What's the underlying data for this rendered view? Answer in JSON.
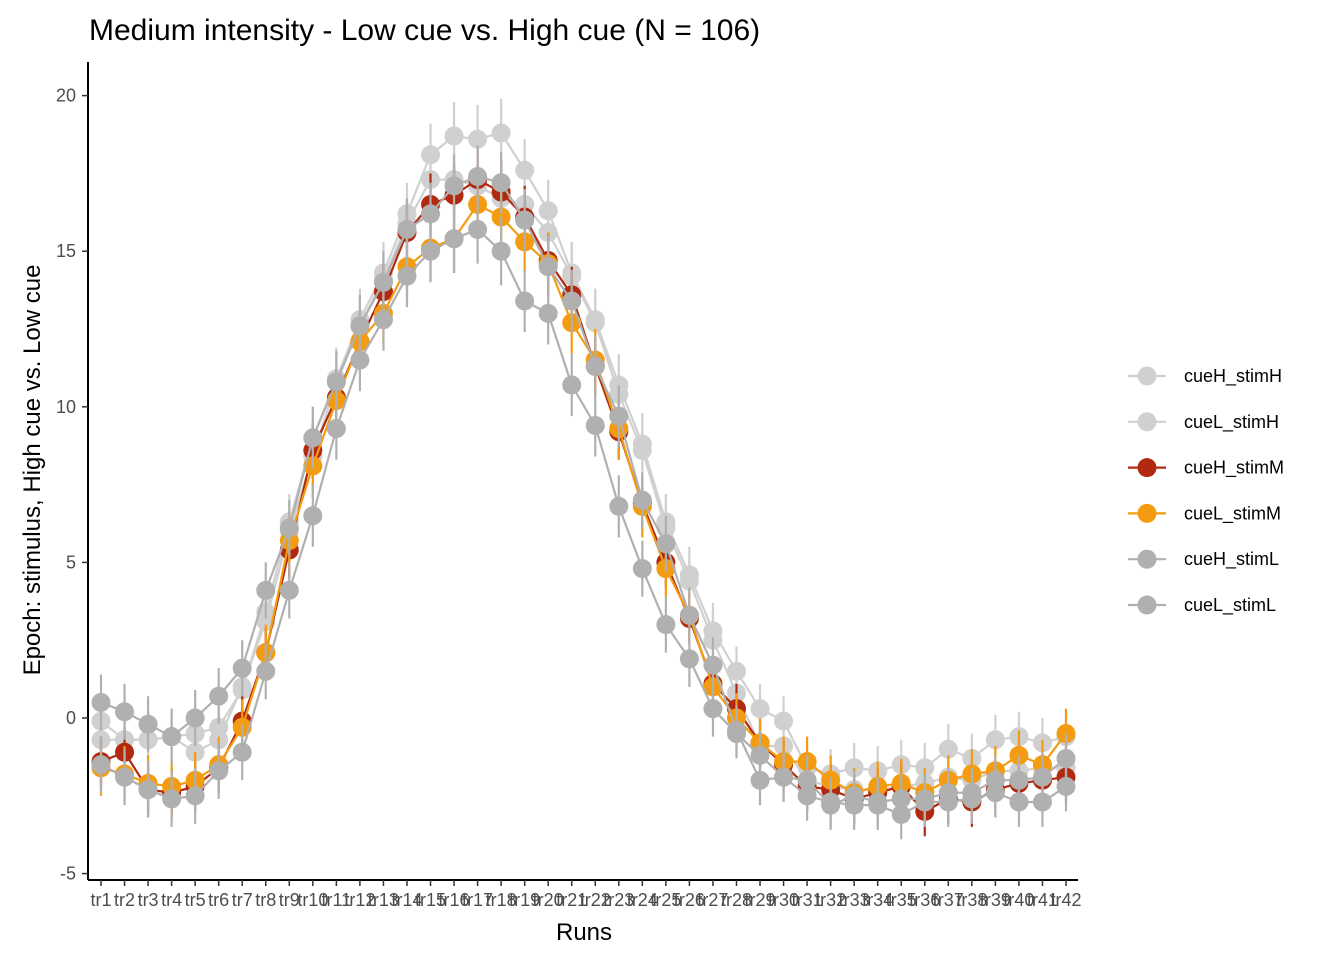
{
  "chart_data": {
    "type": "line",
    "title": "Medium intensity - Low cue vs. High cue (N = 106)",
    "xlabel": "Runs",
    "ylabel": "Epoch: stimulus, High cue vs. Low cue",
    "ylim": [
      -5,
      20
    ],
    "yticks": [
      -5,
      0,
      5,
      10,
      15,
      20
    ],
    "grid": false,
    "legend_position": "right",
    "categories": [
      "tr1",
      "tr2",
      "tr3",
      "tr4",
      "tr5",
      "tr6",
      "tr7",
      "tr8",
      "tr9",
      "tr10",
      "tr11",
      "tr12",
      "tr13",
      "tr14",
      "tr15",
      "tr16",
      "tr17",
      "tr18",
      "tr19",
      "tr20",
      "tr21",
      "tr22",
      "tr23",
      "tr24",
      "tr25",
      "tr26",
      "tr27",
      "tr28",
      "tr29",
      "tr30",
      "tr31",
      "tr32",
      "tr33",
      "tr34",
      "tr35",
      "tr36",
      "tr37",
      "tr38",
      "tr39",
      "tr40",
      "tr41",
      "tr42"
    ],
    "series": [
      {
        "name": "cueH_stimH",
        "color": "#d0d0d0",
        "values": [
          -0.1,
          -0.7,
          -0.7,
          -0.6,
          -0.5,
          -0.3,
          0.9,
          3.4,
          6.3,
          9.0,
          10.9,
          12.8,
          14.3,
          16.2,
          18.1,
          18.7,
          18.6,
          18.8,
          17.6,
          16.3,
          14.3,
          12.8,
          10.7,
          8.8,
          6.3,
          4.6,
          2.8,
          1.5,
          0.3,
          -0.1,
          -1.6,
          -1.8,
          -1.6,
          -1.7,
          -1.5,
          -1.6,
          -1.0,
          -1.3,
          -0.7,
          -0.6,
          -0.8,
          -0.6
        ],
        "errors": [
          0.9,
          0.9,
          0.9,
          0.9,
          0.9,
          0.9,
          0.9,
          0.9,
          0.9,
          1.0,
          1.0,
          1.0,
          1.0,
          1.0,
          1.0,
          1.1,
          1.1,
          1.1,
          1.0,
          1.0,
          1.0,
          1.0,
          1.0,
          1.0,
          0.9,
          0.9,
          0.9,
          0.8,
          0.8,
          0.8,
          0.8,
          0.8,
          0.8,
          0.8,
          0.8,
          0.8,
          0.8,
          0.8,
          0.8,
          0.8,
          0.8,
          0.8
        ]
      },
      {
        "name": "cueL_stimH",
        "color": "#d0d0d0",
        "values": [
          -0.7,
          -0.7,
          -0.7,
          -0.6,
          -1.1,
          -0.7,
          1.0,
          3.1,
          6.0,
          8.4,
          10.8,
          12.6,
          14.1,
          15.9,
          17.3,
          17.3,
          17.1,
          16.7,
          16.5,
          15.6,
          14.2,
          12.7,
          10.4,
          8.6,
          6.1,
          4.4,
          2.5,
          0.8,
          -0.9,
          -0.9,
          -2.0,
          -2.2,
          -2.3,
          -2.3,
          -2.2,
          -2.1,
          -1.9,
          -2.0,
          -1.7,
          -1.7,
          -1.6,
          -1.6
        ],
        "errors": [
          0.9,
          0.9,
          0.9,
          0.9,
          0.9,
          0.9,
          0.9,
          0.9,
          0.9,
          1.0,
          1.0,
          1.0,
          1.0,
          1.0,
          1.0,
          1.1,
          1.1,
          1.1,
          1.0,
          1.0,
          1.0,
          1.0,
          1.0,
          1.0,
          0.9,
          0.9,
          0.9,
          0.8,
          0.8,
          0.8,
          0.8,
          0.8,
          0.8,
          0.8,
          0.8,
          0.8,
          0.8,
          0.8,
          0.8,
          0.8,
          0.8,
          0.8
        ]
      },
      {
        "name": "cueH_stimM",
        "color": "#b12a0f",
        "values": [
          -1.4,
          -1.1,
          -2.3,
          -2.4,
          -2.2,
          -1.6,
          -0.1,
          2.1,
          5.4,
          8.6,
          10.3,
          12.1,
          13.7,
          15.6,
          16.5,
          16.8,
          17.3,
          16.9,
          16.1,
          14.7,
          13.6,
          11.3,
          9.2,
          6.9,
          5.0,
          3.2,
          1.1,
          0.3,
          -0.8,
          -1.5,
          -2.2,
          -2.3,
          -2.6,
          -2.4,
          -2.2,
          -3.0,
          -2.6,
          -2.7,
          -2.3,
          -2.1,
          -2.0,
          -1.9
        ],
        "errors": [
          0.8,
          0.8,
          0.8,
          0.8,
          0.8,
          0.8,
          0.8,
          0.8,
          0.9,
          0.9,
          0.9,
          0.9,
          0.9,
          1.0,
          1.0,
          1.0,
          1.0,
          1.0,
          1.0,
          0.9,
          0.9,
          0.9,
          0.9,
          0.8,
          0.8,
          0.8,
          0.8,
          0.8,
          0.8,
          0.8,
          0.8,
          0.8,
          0.8,
          0.8,
          0.8,
          0.8,
          0.8,
          0.8,
          0.8,
          0.8,
          0.8,
          0.8
        ]
      },
      {
        "name": "cueL_stimM",
        "color": "#f39c12",
        "values": [
          -1.6,
          -1.8,
          -2.1,
          -2.2,
          -2.0,
          -1.5,
          -0.3,
          2.1,
          5.7,
          8.1,
          10.2,
          12.1,
          13.0,
          14.5,
          15.1,
          15.4,
          16.5,
          16.1,
          15.3,
          14.6,
          12.7,
          11.5,
          9.3,
          6.8,
          4.8,
          3.3,
          1.0,
          0.0,
          -0.8,
          -1.4,
          -1.4,
          -2.0,
          -2.4,
          -2.2,
          -2.1,
          -2.4,
          -2.0,
          -1.8,
          -1.7,
          -1.2,
          -1.5,
          -0.5
        ],
        "errors": [
          0.9,
          0.9,
          0.9,
          0.9,
          0.9,
          0.9,
          0.9,
          0.9,
          0.9,
          1.0,
          1.0,
          1.0,
          1.0,
          1.0,
          1.0,
          1.1,
          1.1,
          1.1,
          1.0,
          1.0,
          1.0,
          1.0,
          1.0,
          1.0,
          0.9,
          0.9,
          0.9,
          0.8,
          0.8,
          0.8,
          0.8,
          0.8,
          0.8,
          0.8,
          0.8,
          0.8,
          0.8,
          0.8,
          0.8,
          0.8,
          0.8,
          0.8
        ]
      },
      {
        "name": "cueH_stimL",
        "color": "#b0b0b0",
        "values": [
          0.5,
          0.2,
          -0.2,
          -0.6,
          0.0,
          0.7,
          1.6,
          4.1,
          6.1,
          9.0,
          10.8,
          12.6,
          14.0,
          15.7,
          16.2,
          17.1,
          17.4,
          17.2,
          16.0,
          14.5,
          13.4,
          11.3,
          9.7,
          7.0,
          5.6,
          3.3,
          1.7,
          -0.4,
          -2.0,
          -1.9,
          -2.0,
          -2.8,
          -2.5,
          -2.7,
          -2.6,
          -2.6,
          -2.4,
          -2.4,
          -2.0,
          -2.0,
          -1.9,
          -1.3
        ],
        "errors": [
          0.9,
          0.9,
          0.9,
          0.9,
          0.9,
          0.9,
          0.9,
          0.9,
          0.9,
          1.0,
          1.0,
          1.0,
          1.0,
          1.0,
          1.0,
          1.0,
          1.0,
          1.0,
          1.0,
          1.0,
          1.0,
          1.0,
          1.0,
          0.9,
          0.9,
          0.9,
          0.9,
          0.8,
          0.8,
          0.8,
          0.8,
          0.8,
          0.8,
          0.8,
          0.8,
          0.8,
          0.8,
          0.8,
          0.8,
          0.8,
          0.8,
          0.8
        ]
      },
      {
        "name": "cueL_stimL",
        "color": "#b0b0b0",
        "values": [
          -1.5,
          -1.9,
          -2.3,
          -2.6,
          -2.5,
          -1.7,
          -1.1,
          1.5,
          4.1,
          6.5,
          9.3,
          11.5,
          12.8,
          14.2,
          15.0,
          15.4,
          15.7,
          15.0,
          13.4,
          13.0,
          10.7,
          9.4,
          6.8,
          4.8,
          3.0,
          1.9,
          0.3,
          -0.5,
          -1.2,
          -1.9,
          -2.5,
          -2.7,
          -2.8,
          -2.8,
          -3.1,
          -2.7,
          -2.7,
          -2.6,
          -2.4,
          -2.7,
          -2.7,
          -2.2
        ],
        "errors": [
          0.9,
          0.9,
          0.9,
          0.9,
          0.9,
          0.9,
          0.9,
          0.9,
          0.9,
          1.0,
          1.0,
          1.0,
          1.0,
          1.0,
          1.0,
          1.1,
          1.1,
          1.1,
          1.0,
          1.0,
          1.0,
          1.0,
          1.0,
          0.9,
          0.9,
          0.9,
          0.9,
          0.8,
          0.8,
          0.8,
          0.8,
          0.8,
          0.8,
          0.8,
          0.8,
          0.8,
          0.8,
          0.8,
          0.8,
          0.8,
          0.8,
          0.8
        ]
      }
    ]
  }
}
